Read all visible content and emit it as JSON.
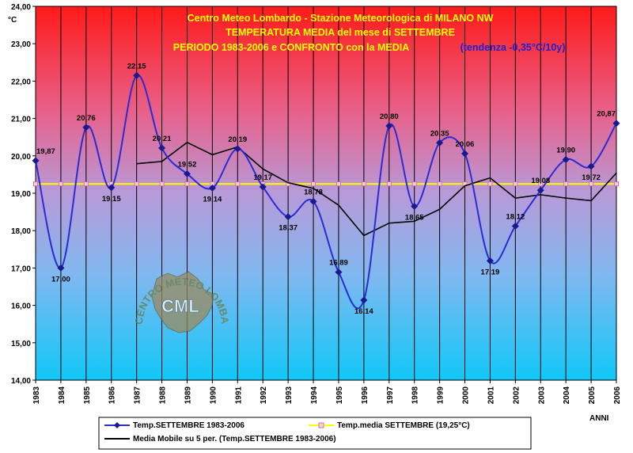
{
  "chart_data": {
    "type": "line",
    "title_lines": [
      "Centro Meteo Lombardo - Stazione Meteorologica di MILANO NW",
      "TEMPERATURA MEDIA del mese di SETTEMBRE",
      "PERIODO 1983-2006 e CONFRONTO con la MEDIA"
    ],
    "trend_note": "(tendenza -0,35°C/10y)",
    "ylabel": "°C",
    "xlabel": "ANNI",
    "ylim": [
      14,
      24
    ],
    "yticks": [
      "14,00",
      "15,00",
      "16,00",
      "17,00",
      "18,00",
      "19,00",
      "20,00",
      "21,00",
      "22,00",
      "23,00",
      "24,00"
    ],
    "x": [
      "1983",
      "1984",
      "1985",
      "1986",
      "1987",
      "1988",
      "1989",
      "1990",
      "1991",
      "1992",
      "1993",
      "1994",
      "1995",
      "1996",
      "1997",
      "1998",
      "1999",
      "2000",
      "2001",
      "2002",
      "2003",
      "2004",
      "2005",
      "2006"
    ],
    "series": [
      {
        "name": "Temp.SETTEMBRE 1983-2006",
        "color": "#2b2bd4",
        "values": [
          19.87,
          17.0,
          20.76,
          19.15,
          22.15,
          20.21,
          19.52,
          19.14,
          20.19,
          19.17,
          18.37,
          18.78,
          16.89,
          16.14,
          20.8,
          18.65,
          20.35,
          20.06,
          17.19,
          18.12,
          19.08,
          19.9,
          19.72,
          20.87
        ],
        "labels": [
          "19,87",
          "17,00",
          "20,76",
          "19,15",
          "22,15",
          "20,21",
          "19,52",
          "19,14",
          "20,19",
          "19,17",
          "18,37",
          "18,78",
          "16,89",
          "16,14",
          "20,80",
          "18,65",
          "20,35",
          "20,06",
          "17,19",
          "18,12",
          "19,08",
          "19,90",
          "19,72",
          "20,87"
        ]
      },
      {
        "name": "Temp.media SETTEMBRE (19,25°C)",
        "color": "#ffff00",
        "values": [
          19.25,
          19.25,
          19.25,
          19.25,
          19.25,
          19.25,
          19.25,
          19.25,
          19.25,
          19.25,
          19.25,
          19.25,
          19.25,
          19.25,
          19.25,
          19.25,
          19.25,
          19.25,
          19.25,
          19.25,
          19.25,
          19.25,
          19.25,
          19.25
        ]
      },
      {
        "name": "Media Mobile su 5 per. (Temp.SETTEMBRE 1983-2006)",
        "color": "#000000",
        "values": [
          null,
          null,
          null,
          null,
          19.79,
          19.85,
          20.36,
          20.03,
          20.24,
          19.65,
          19.28,
          19.13,
          18.68,
          17.87,
          18.2,
          18.25,
          18.57,
          19.2,
          19.41,
          18.87,
          18.96,
          18.87,
          18.8,
          19.54
        ]
      }
    ],
    "grid": "vertical",
    "legend_position": "bottom"
  },
  "logo": {
    "text": "CML",
    "ring_text": "CENTRO METEO LOMBARDO"
  }
}
